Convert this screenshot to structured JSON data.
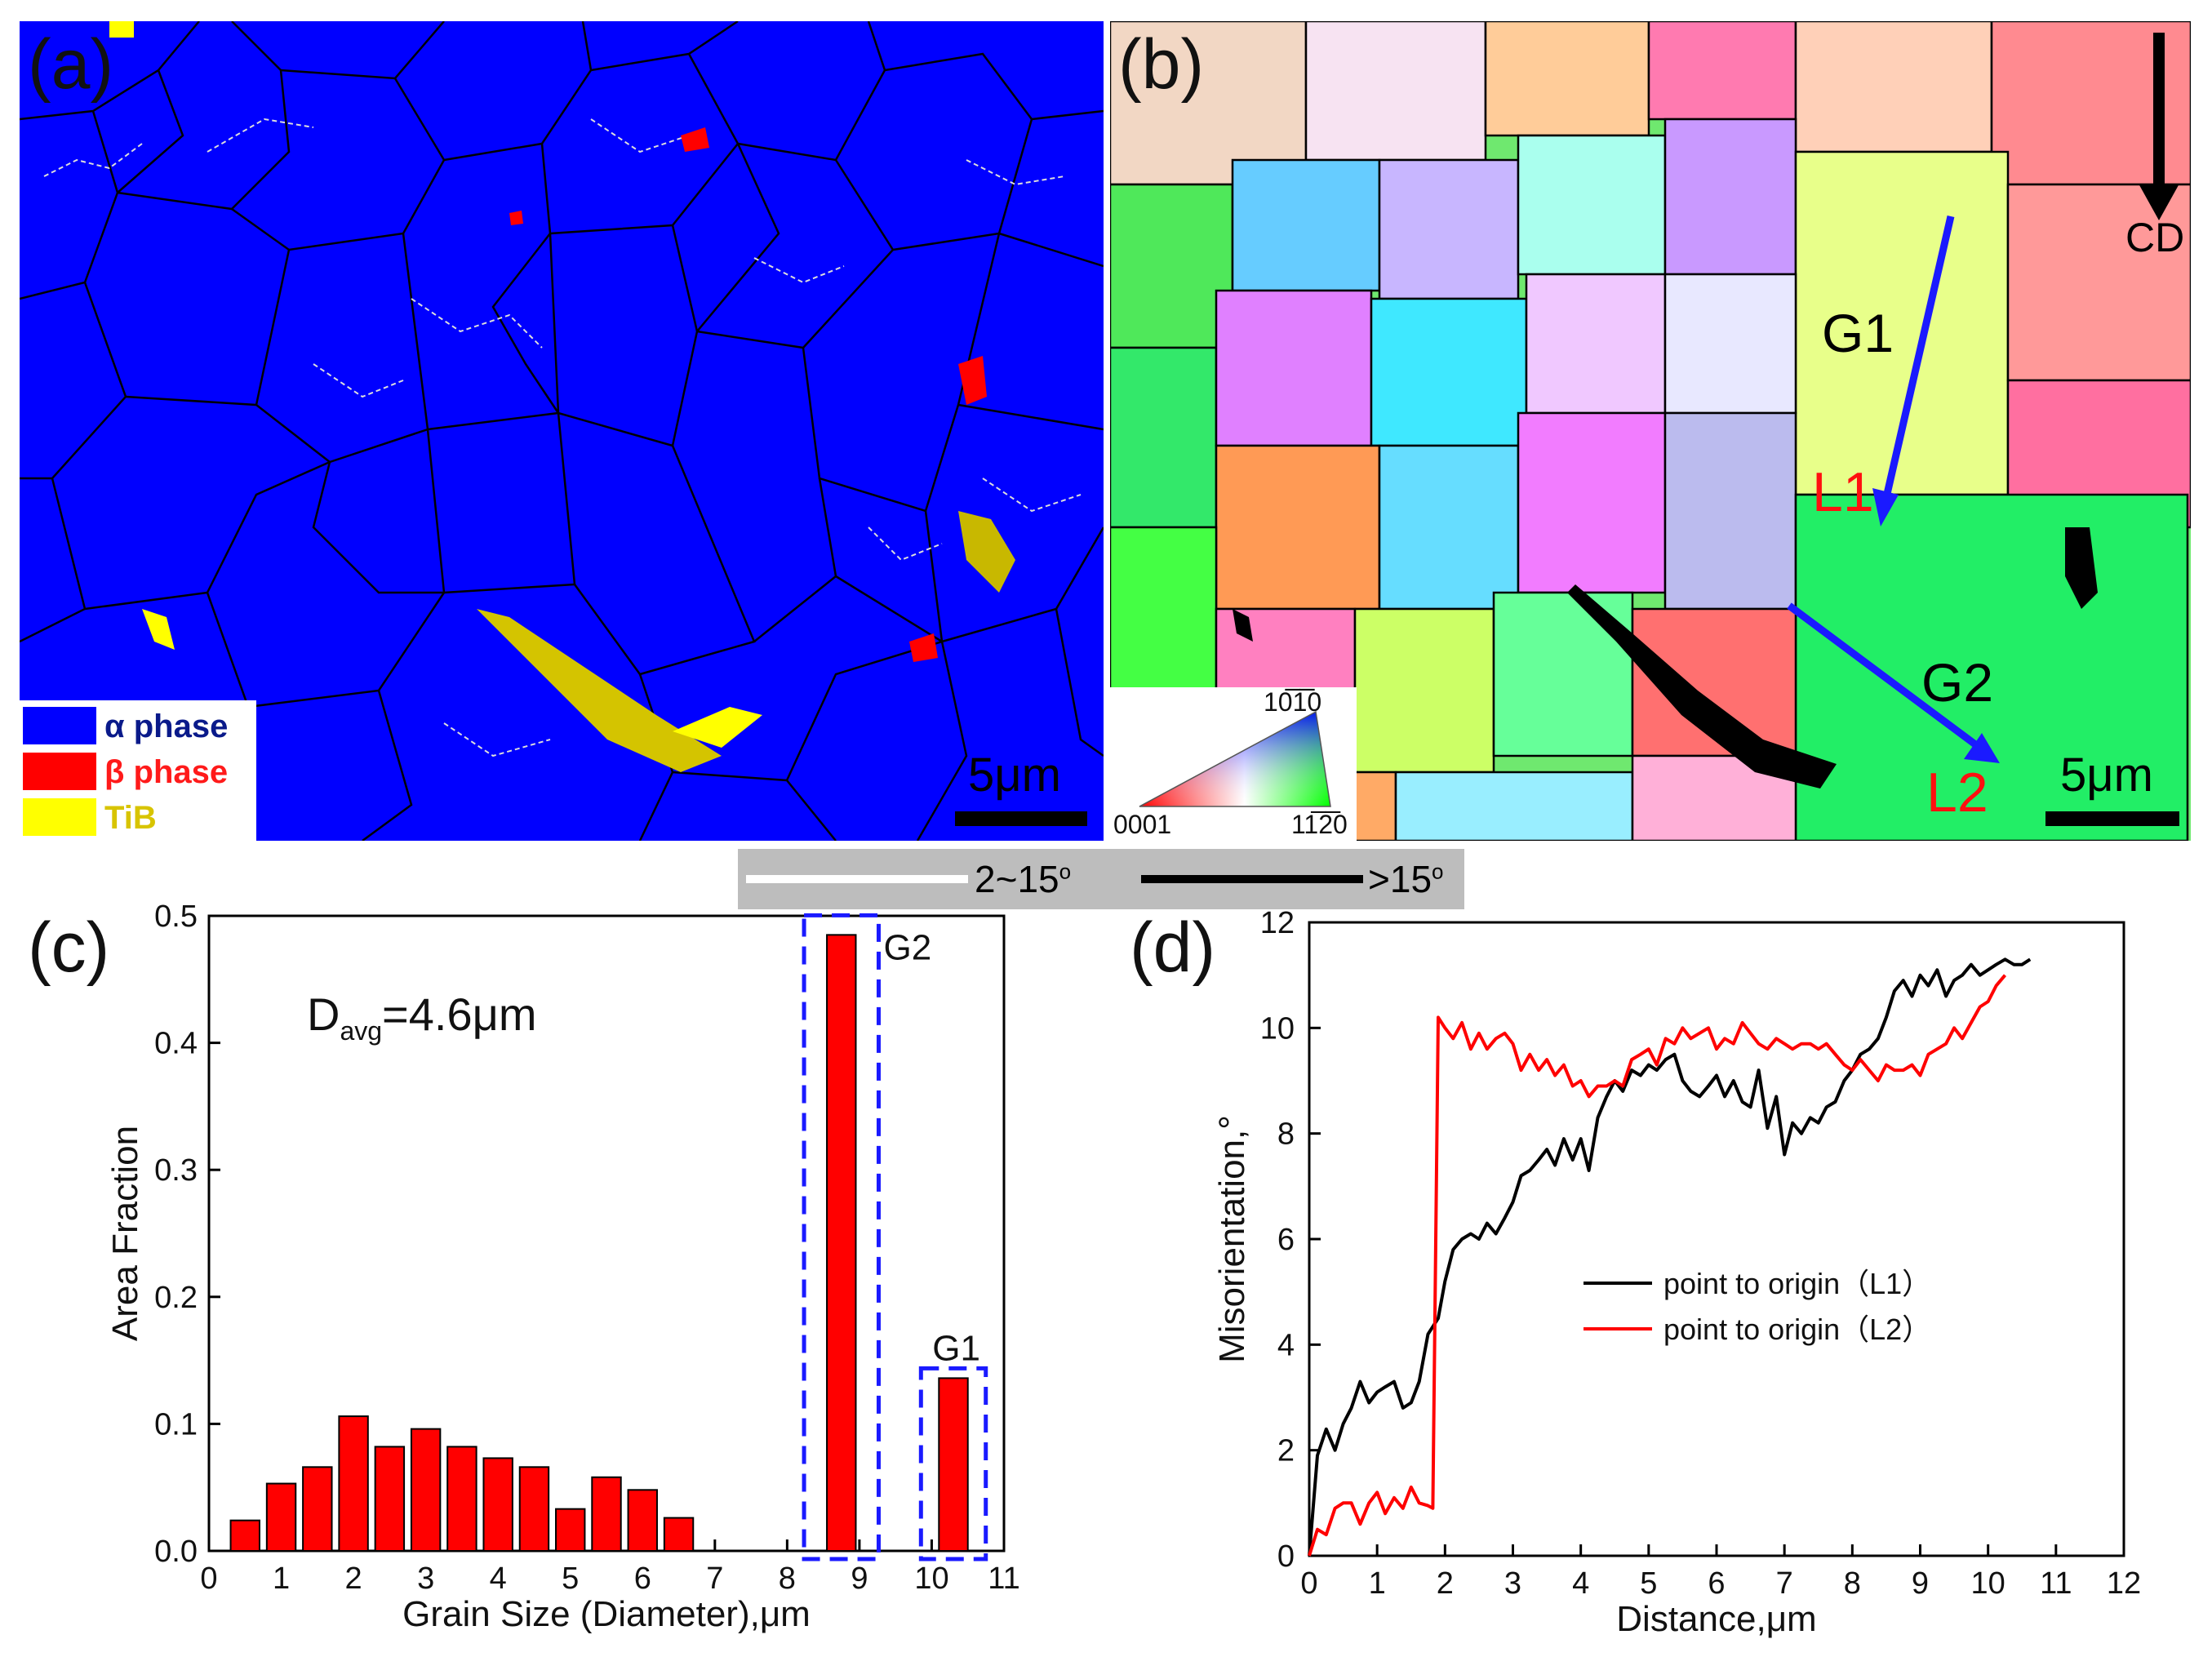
{
  "panel_a": {
    "label": "(a)",
    "legend": [
      {
        "name": "α phase",
        "color": "#0000ff",
        "text_color": "#0a1a8a"
      },
      {
        "name": "β phase",
        "color": "#ff0000",
        "text_color": "#ff1a1a"
      },
      {
        "name": "TiB",
        "color": "#ffff00",
        "text_color": "#d8c400"
      }
    ],
    "scalebar": "5μm"
  },
  "panel_b": {
    "label": "(b)",
    "cd_label": "CD",
    "g1": "G1",
    "g2": "G2",
    "l1": "L1",
    "l2": "L2",
    "scalebar": "5μm",
    "ipf_top": "10̅1̅0",
    "ipf_left": "0001",
    "ipf_right": "11̅2̅0",
    "arrow_color": "#1a1aff"
  },
  "boundary_legend": {
    "low": "2~15",
    "high": ">15",
    "sup": "o"
  },
  "chart_data": [
    {
      "panel": "(c)",
      "type": "bar",
      "xlabel": "Grain Size (Diameter),μm",
      "ylabel": "Area Fraction",
      "xlim": [
        0,
        11
      ],
      "ylim": [
        0,
        0.5
      ],
      "xticks": [
        0,
        1,
        2,
        3,
        4,
        5,
        6,
        7,
        8,
        9,
        10,
        11
      ],
      "yticks": [
        0.0,
        0.1,
        0.2,
        0.3,
        0.4,
        0.5
      ],
      "x": [
        0.5,
        1.0,
        1.5,
        2.0,
        2.5,
        3.0,
        3.5,
        4.0,
        4.5,
        5.0,
        5.5,
        6.0,
        6.5,
        8.75,
        10.3
      ],
      "values": [
        0.024,
        0.053,
        0.066,
        0.106,
        0.082,
        0.096,
        0.082,
        0.073,
        0.066,
        0.033,
        0.058,
        0.048,
        0.026,
        0.485,
        0.136
      ],
      "annotation_main": "D",
      "annotation_sub": "avg",
      "annotation_rest": "=4.6μm",
      "box_labels": [
        "G2",
        "G1"
      ],
      "bar_color": "#ff0000",
      "box_color": "#1a1aff"
    },
    {
      "panel": "(d)",
      "type": "line",
      "xlabel": "Distance,μm",
      "ylabel": "Misorientation,°",
      "xlim": [
        0,
        12
      ],
      "ylim": [
        0,
        12
      ],
      "xticks": [
        0,
        1,
        2,
        3,
        4,
        5,
        6,
        7,
        8,
        9,
        10,
        11,
        12
      ],
      "yticks": [
        0,
        2,
        4,
        6,
        8,
        10,
        12
      ],
      "series": [
        {
          "name": "point to origin（L1）",
          "color": "#000000",
          "x": [
            0,
            0.12,
            0.25,
            0.38,
            0.5,
            0.62,
            0.75,
            0.88,
            1.0,
            1.12,
            1.25,
            1.38,
            1.5,
            1.62,
            1.75,
            1.9,
            2.0,
            2.12,
            2.25,
            2.38,
            2.5,
            2.62,
            2.75,
            2.88,
            3.0,
            3.12,
            3.25,
            3.38,
            3.5,
            3.62,
            3.75,
            3.88,
            4.0,
            4.12,
            4.25,
            4.38,
            4.5,
            4.62,
            4.75,
            4.88,
            5.0,
            5.12,
            5.25,
            5.38,
            5.5,
            5.62,
            5.75,
            5.88,
            6.0,
            6.12,
            6.25,
            6.38,
            6.5,
            6.62,
            6.75,
            6.88,
            7.0,
            7.12,
            7.25,
            7.38,
            7.5,
            7.62,
            7.75,
            7.88,
            8.0,
            8.12,
            8.25,
            8.38,
            8.5,
            8.62,
            8.75,
            8.88,
            9.0,
            9.12,
            9.25,
            9.38,
            9.5,
            9.62,
            9.75,
            9.88,
            10.0,
            10.12,
            10.25,
            10.38,
            10.5,
            10.62
          ],
          "y": [
            0,
            1.9,
            2.4,
            2.0,
            2.5,
            2.8,
            3.3,
            2.9,
            3.1,
            3.2,
            3.3,
            2.8,
            2.9,
            3.3,
            4.2,
            4.5,
            5.2,
            5.8,
            6.0,
            6.1,
            6.0,
            6.3,
            6.1,
            6.4,
            6.7,
            7.2,
            7.3,
            7.5,
            7.7,
            7.4,
            7.9,
            7.5,
            7.9,
            7.3,
            8.3,
            8.7,
            9.0,
            8.8,
            9.2,
            9.1,
            9.3,
            9.2,
            9.4,
            9.5,
            9.0,
            8.8,
            8.7,
            8.9,
            9.1,
            8.7,
            9.0,
            8.6,
            8.5,
            9.2,
            8.1,
            8.7,
            7.6,
            8.2,
            8.0,
            8.3,
            8.2,
            8.5,
            8.6,
            9.0,
            9.2,
            9.5,
            9.6,
            9.8,
            10.2,
            10.7,
            10.9,
            10.6,
            11.0,
            10.8,
            11.1,
            10.6,
            10.9,
            11.0,
            11.2,
            11.0,
            11.1,
            11.2,
            11.3,
            11.2,
            11.2,
            11.3
          ]
        },
        {
          "name": "point to origin（L2）",
          "color": "#ff0000",
          "x": [
            0,
            0.12,
            0.25,
            0.38,
            0.5,
            0.62,
            0.75,
            0.88,
            1.0,
            1.12,
            1.25,
            1.38,
            1.5,
            1.62,
            1.75,
            1.82,
            1.9,
            2.0,
            2.12,
            2.25,
            2.38,
            2.5,
            2.62,
            2.75,
            2.88,
            3.0,
            3.12,
            3.25,
            3.38,
            3.5,
            3.62,
            3.75,
            3.88,
            4.0,
            4.12,
            4.25,
            4.38,
            4.5,
            4.62,
            4.75,
            4.88,
            5.0,
            5.12,
            5.25,
            5.38,
            5.5,
            5.62,
            5.75,
            5.88,
            6.0,
            6.12,
            6.25,
            6.38,
            6.5,
            6.62,
            6.75,
            6.88,
            7.0,
            7.12,
            7.25,
            7.38,
            7.5,
            7.62,
            7.75,
            7.88,
            8.0,
            8.12,
            8.25,
            8.38,
            8.5,
            8.62,
            8.75,
            8.88,
            9.0,
            9.12,
            9.25,
            9.38,
            9.5,
            9.62,
            9.75,
            9.88,
            10.0,
            10.12,
            10.25
          ],
          "y": [
            0,
            0.5,
            0.4,
            0.9,
            1.0,
            1.0,
            0.6,
            1.0,
            1.2,
            0.8,
            1.1,
            0.9,
            1.3,
            1.0,
            0.95,
            0.9,
            10.2,
            10.0,
            9.8,
            10.1,
            9.6,
            9.9,
            9.6,
            9.8,
            9.9,
            9.7,
            9.2,
            9.5,
            9.2,
            9.4,
            9.1,
            9.3,
            8.9,
            9.0,
            8.7,
            8.9,
            8.9,
            9.0,
            8.9,
            9.4,
            9.5,
            9.6,
            9.3,
            9.8,
            9.7,
            10.0,
            9.8,
            9.9,
            10.0,
            9.6,
            9.8,
            9.7,
            10.1,
            9.9,
            9.7,
            9.6,
            9.8,
            9.7,
            9.6,
            9.7,
            9.7,
            9.6,
            9.7,
            9.5,
            9.3,
            9.2,
            9.4,
            9.2,
            9.0,
            9.3,
            9.2,
            9.2,
            9.3,
            9.1,
            9.5,
            9.6,
            9.7,
            10.0,
            9.8,
            10.1,
            10.4,
            10.5,
            10.8,
            11.0
          ]
        }
      ]
    }
  ]
}
